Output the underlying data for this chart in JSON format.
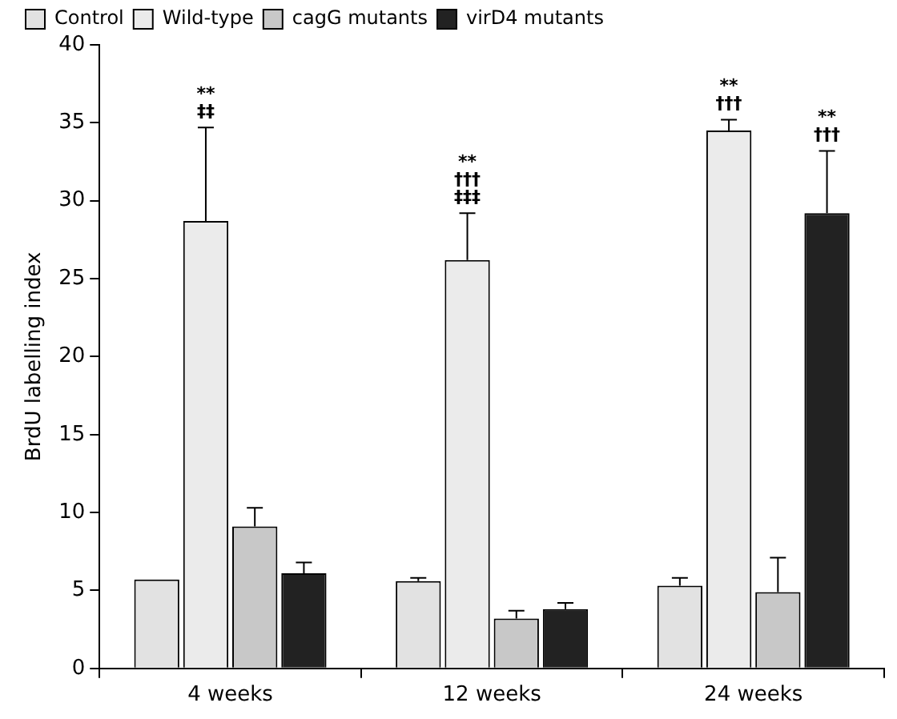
{
  "chart_data": {
    "type": "bar",
    "ylabel": "BrdU labelling index",
    "categories": [
      "4 weeks",
      "12 weeks",
      "24 weeks"
    ],
    "series": [
      {
        "name": "Control",
        "color": "#e2e2e2",
        "values": [
          5.7,
          5.6,
          5.3
        ],
        "errors": [
          null,
          0.2,
          0.5
        ]
      },
      {
        "name": "Wild-type",
        "color": "#ebebeb",
        "values": [
          28.7,
          26.2,
          34.5
        ],
        "errors": [
          6,
          3,
          0.7
        ]
      },
      {
        "name": "cagG mutants",
        "color": "#c8c8c8",
        "values": [
          9.1,
          3.2,
          4.9
        ],
        "errors": [
          1.2,
          0.5,
          2.2
        ]
      },
      {
        "name": "virD4 mutants",
        "color": "#222222",
        "values": [
          6.1,
          3.8,
          29.2
        ],
        "errors": [
          0.7,
          0.4,
          4
        ]
      }
    ],
    "ylim": [
      0,
      40
    ],
    "yticks": [
      0,
      5,
      10,
      15,
      20,
      25,
      30,
      35,
      40
    ],
    "grid": false,
    "legend": "top left",
    "annotations": [
      "**\n†††",
      "**\n‡‡",
      "**\n†††",
      "**\n†††\n‡‡‡"
    ]
  }
}
